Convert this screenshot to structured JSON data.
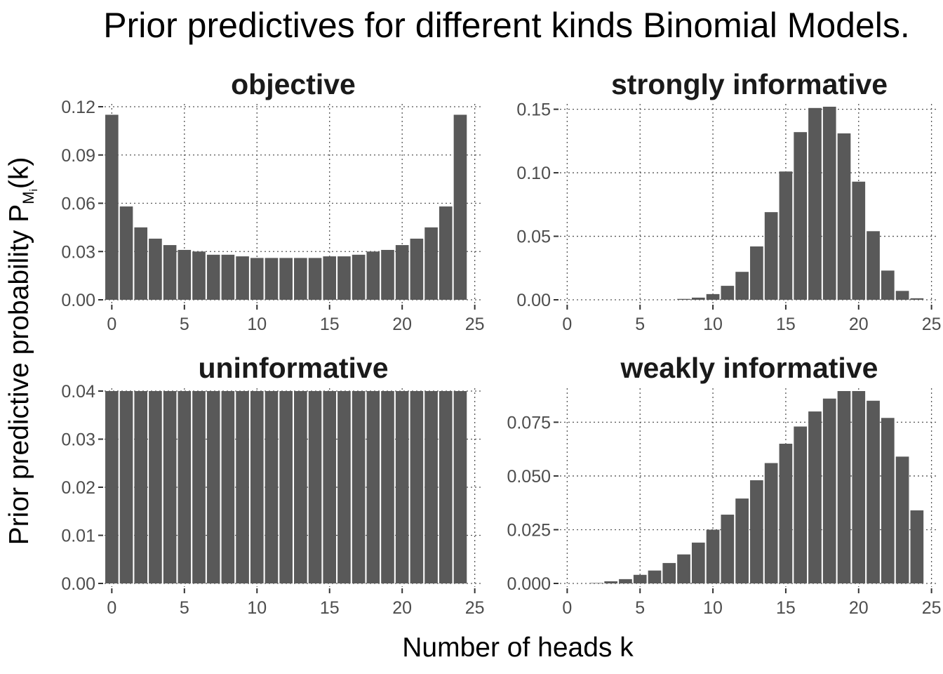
{
  "figure": {
    "title": "Prior predictives for different kinds Binomial Models.",
    "xlabel": "Number of heads k",
    "ylabel_main": "Prior predictive probability P",
    "ylabel_sub": "M",
    "ylabel_subsub": "i",
    "ylabel_tail": "(k)"
  },
  "chart_data": [
    {
      "type": "bar",
      "title": "objective",
      "xlabel": "Number of heads k",
      "ylabel": "Prior predictive probability P_Mi(k)",
      "x": [
        0,
        1,
        2,
        3,
        4,
        5,
        6,
        7,
        8,
        9,
        10,
        11,
        12,
        13,
        14,
        15,
        16,
        17,
        18,
        19,
        20,
        21,
        22,
        23,
        24
      ],
      "values": [
        0.115,
        0.058,
        0.045,
        0.038,
        0.034,
        0.031,
        0.03,
        0.028,
        0.028,
        0.027,
        0.026,
        0.026,
        0.026,
        0.026,
        0.026,
        0.027,
        0.027,
        0.028,
        0.03,
        0.031,
        0.034,
        0.038,
        0.045,
        0.058,
        0.115
      ],
      "xlim": [
        -0.5,
        25.5
      ],
      "ylim": [
        0,
        0.12
      ],
      "xticks": [
        "0",
        "5",
        "10",
        "15",
        "20",
        "25"
      ],
      "yticks": [
        "0.00",
        "0.03",
        "0.06",
        "0.09",
        "0.12"
      ],
      "grid": true
    },
    {
      "type": "bar",
      "title": "strongly informative",
      "xlabel": "Number of heads k",
      "ylabel": "Prior predictive probability P_Mi(k)",
      "x": [
        0,
        1,
        2,
        3,
        4,
        5,
        6,
        7,
        8,
        9,
        10,
        11,
        12,
        13,
        14,
        15,
        16,
        17,
        18,
        19,
        20,
        21,
        22,
        23,
        24
      ],
      "values": [
        0,
        0,
        0,
        0,
        0,
        0,
        0,
        0,
        0.0007,
        0.0017,
        0.0045,
        0.011,
        0.022,
        0.042,
        0.069,
        0.101,
        0.132,
        0.151,
        0.152,
        0.131,
        0.093,
        0.054,
        0.023,
        0.007,
        0.0012
      ],
      "xlim": [
        -0.5,
        25.5
      ],
      "ylim": [
        0,
        0.152
      ],
      "xticks": [
        "0",
        "5",
        "10",
        "15",
        "20",
        "25"
      ],
      "yticks": [
        "0.00",
        "0.05",
        "0.10",
        "0.15"
      ],
      "grid": true
    },
    {
      "type": "bar",
      "title": "uninformative",
      "xlabel": "Number of heads k",
      "ylabel": "Prior predictive probability P_Mi(k)",
      "x": [
        0,
        1,
        2,
        3,
        4,
        5,
        6,
        7,
        8,
        9,
        10,
        11,
        12,
        13,
        14,
        15,
        16,
        17,
        18,
        19,
        20,
        21,
        22,
        23,
        24
      ],
      "values": [
        0.04,
        0.04,
        0.04,
        0.04,
        0.04,
        0.04,
        0.04,
        0.04,
        0.04,
        0.04,
        0.04,
        0.04,
        0.04,
        0.04,
        0.04,
        0.04,
        0.04,
        0.04,
        0.04,
        0.04,
        0.04,
        0.04,
        0.04,
        0.04,
        0.04
      ],
      "xlim": [
        -0.5,
        25.5
      ],
      "ylim": [
        0,
        0.04
      ],
      "xticks": [
        "0",
        "5",
        "10",
        "15",
        "20",
        "25"
      ],
      "yticks": [
        "0.00",
        "0.01",
        "0.02",
        "0.03",
        "0.04"
      ],
      "grid": true
    },
    {
      "type": "bar",
      "title": "weakly informative",
      "xlabel": "Number of heads k",
      "ylabel": "Prior predictive probability P_Mi(k)",
      "x": [
        0,
        1,
        2,
        3,
        4,
        5,
        6,
        7,
        8,
        9,
        10,
        11,
        12,
        13,
        14,
        15,
        16,
        17,
        18,
        19,
        20,
        21,
        22,
        23,
        24
      ],
      "values": [
        0,
        0,
        0.0002,
        0.001,
        0.002,
        0.004,
        0.006,
        0.0095,
        0.0135,
        0.019,
        0.025,
        0.032,
        0.0395,
        0.048,
        0.056,
        0.065,
        0.073,
        0.08,
        0.086,
        0.0895,
        0.0895,
        0.085,
        0.077,
        0.059,
        0.034
      ],
      "xlim": [
        -0.5,
        25.5
      ],
      "ylim": [
        0,
        0.0895
      ],
      "xticks": [
        "0",
        "5",
        "10",
        "15",
        "20",
        "25"
      ],
      "yticks": [
        "0.000",
        "0.025",
        "0.050",
        "0.075"
      ],
      "grid": true
    }
  ]
}
